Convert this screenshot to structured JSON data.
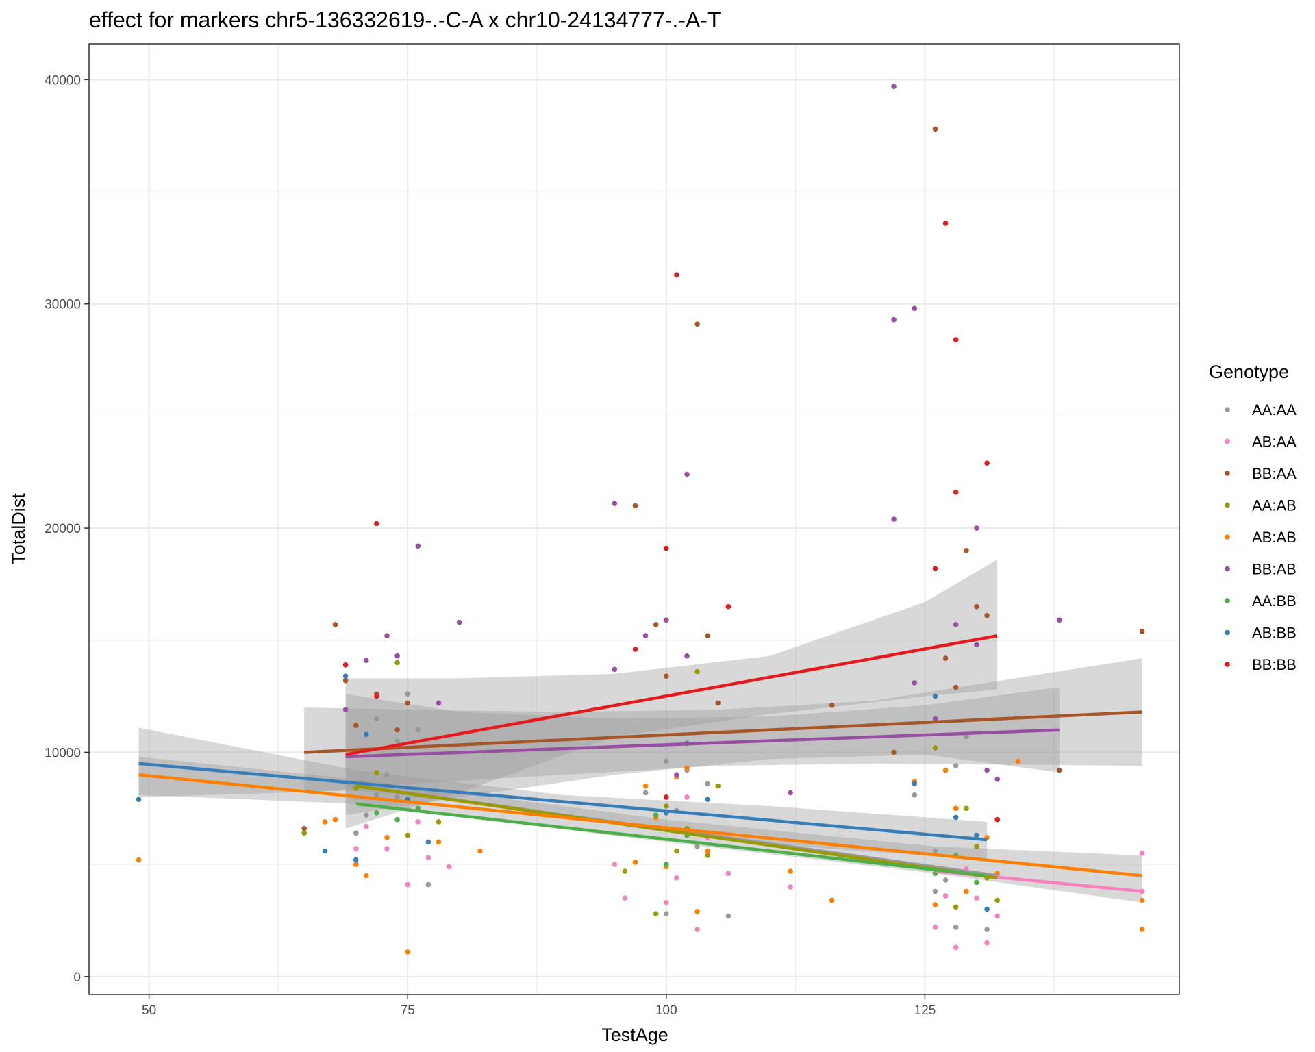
{
  "chart_data": {
    "type": "scatter",
    "title": "effect for markers chr5-136332619-.-C-A x chr10-24134777-.-A-T",
    "xlabel": "TestAge",
    "ylabel": "TotalDist",
    "xlim": [
      44.2,
      149.6
    ],
    "ylim": [
      -800,
      41600
    ],
    "x_ticks": [
      50,
      75,
      100,
      125
    ],
    "y_ticks": [
      0,
      10000,
      20000,
      30000,
      40000
    ],
    "grid": true,
    "legend": {
      "title": "Genotype",
      "placement": "right"
    },
    "series": [
      {
        "name": "AA:AA",
        "color": "#999999",
        "points": [
          [
            70,
            6400
          ],
          [
            71,
            7200
          ],
          [
            72,
            8100
          ],
          [
            73,
            9000
          ],
          [
            74,
            10500
          ],
          [
            75,
            12600
          ],
          [
            76,
            11000
          ],
          [
            77,
            4100
          ],
          [
            74,
            8000
          ],
          [
            72,
            11500
          ],
          [
            100,
            2800
          ],
          [
            101,
            7400
          ],
          [
            102,
            9200
          ],
          [
            103,
            5800
          ],
          [
            104,
            8600
          ],
          [
            106,
            2700
          ],
          [
            100,
            9600
          ],
          [
            98,
            8200
          ],
          [
            124,
            8100
          ],
          [
            126,
            5600
          ],
          [
            127,
            4300
          ],
          [
            128,
            9400
          ],
          [
            129,
            10700
          ],
          [
            130,
            6300
          ],
          [
            131,
            2100
          ],
          [
            132,
            7000
          ],
          [
            128,
            2200
          ],
          [
            126,
            3800
          ]
        ],
        "fit": {
          "x": [
            70,
            132
          ],
          "y": [
            8500,
            4500
          ]
        }
      },
      {
        "name": "AB:AA",
        "color": "#F781BF",
        "points": [
          [
            70,
            5700
          ],
          [
            71,
            6700
          ],
          [
            73,
            5700
          ],
          [
            75,
            4100
          ],
          [
            77,
            5300
          ],
          [
            79,
            4900
          ],
          [
            76,
            6900
          ],
          [
            95,
            5000
          ],
          [
            96,
            3500
          ],
          [
            100,
            3300
          ],
          [
            101,
            4400
          ],
          [
            102,
            8000
          ],
          [
            103,
            2100
          ],
          [
            104,
            6200
          ],
          [
            106,
            4600
          ],
          [
            112,
            4000
          ],
          [
            126,
            2200
          ],
          [
            127,
            3600
          ],
          [
            128,
            1300
          ],
          [
            129,
            4800
          ],
          [
            130,
            3500
          ],
          [
            131,
            1500
          ],
          [
            132,
            2700
          ],
          [
            146,
            5500
          ],
          [
            146,
            3800
          ]
        ],
        "fit": {
          "x": [
            126,
            146
          ],
          "y": [
            4700,
            3800
          ]
        }
      },
      {
        "name": "BB:AA",
        "color": "#A65628",
        "points": [
          [
            65,
            6600
          ],
          [
            68,
            15700
          ],
          [
            69,
            13200
          ],
          [
            70,
            11200
          ],
          [
            72,
            12600
          ],
          [
            74,
            11000
          ],
          [
            75,
            12200
          ],
          [
            97,
            21000
          ],
          [
            99,
            15700
          ],
          [
            100,
            13400
          ],
          [
            103,
            29100
          ],
          [
            104,
            15200
          ],
          [
            105,
            12200
          ],
          [
            116,
            12100
          ],
          [
            122,
            10000
          ],
          [
            126,
            37800
          ],
          [
            127,
            14200
          ],
          [
            128,
            12900
          ],
          [
            129,
            19000
          ],
          [
            130,
            16500
          ],
          [
            131,
            16100
          ],
          [
            138,
            9200
          ],
          [
            146,
            15400
          ]
        ],
        "fit": {
          "x": [
            65,
            146
          ],
          "y": [
            10000,
            11800
          ]
        }
      },
      {
        "name": "AA:AB",
        "color": "#999900",
        "points": [
          [
            65,
            6400
          ],
          [
            70,
            8400
          ],
          [
            72,
            9100
          ],
          [
            74,
            14000
          ],
          [
            75,
            6300
          ],
          [
            78,
            6900
          ],
          [
            96,
            4700
          ],
          [
            99,
            2800
          ],
          [
            100,
            7600
          ],
          [
            101,
            5600
          ],
          [
            102,
            6600
          ],
          [
            103,
            13600
          ],
          [
            104,
            5400
          ],
          [
            105,
            8500
          ],
          [
            126,
            10200
          ],
          [
            128,
            3100
          ],
          [
            129,
            7500
          ],
          [
            130,
            5800
          ],
          [
            131,
            4400
          ],
          [
            132,
            3400
          ]
        ],
        "fit": {
          "x": [
            70,
            132
          ],
          "y": [
            8500,
            4400
          ]
        }
      },
      {
        "name": "AB:AB",
        "color": "#FF7F00",
        "points": [
          [
            49,
            5200
          ],
          [
            67,
            6900
          ],
          [
            68,
            7000
          ],
          [
            70,
            5000
          ],
          [
            71,
            4500
          ],
          [
            73,
            6200
          ],
          [
            75,
            1100
          ],
          [
            78,
            6000
          ],
          [
            82,
            5600
          ],
          [
            97,
            5100
          ],
          [
            98,
            8500
          ],
          [
            99,
            7100
          ],
          [
            100,
            4900
          ],
          [
            101,
            8900
          ],
          [
            102,
            9300
          ],
          [
            103,
            2900
          ],
          [
            104,
            5600
          ],
          [
            112,
            4700
          ],
          [
            116,
            3400
          ],
          [
            124,
            8700
          ],
          [
            126,
            3200
          ],
          [
            127,
            9200
          ],
          [
            128,
            7500
          ],
          [
            129,
            3800
          ],
          [
            131,
            6200
          ],
          [
            132,
            4600
          ],
          [
            134,
            9600
          ],
          [
            146,
            3400
          ],
          [
            146,
            2100
          ]
        ],
        "fit": {
          "x": [
            49,
            146
          ],
          "y": [
            9000,
            4500
          ]
        }
      },
      {
        "name": "BB:AB",
        "color": "#984EA3",
        "points": [
          [
            69,
            11900
          ],
          [
            71,
            14100
          ],
          [
            73,
            15200
          ],
          [
            74,
            14300
          ],
          [
            76,
            19200
          ],
          [
            78,
            12200
          ],
          [
            80,
            15800
          ],
          [
            95,
            21100
          ],
          [
            95,
            13700
          ],
          [
            98,
            15200
          ],
          [
            100,
            15900
          ],
          [
            101,
            9000
          ],
          [
            102,
            22400
          ],
          [
            102,
            14300
          ],
          [
            112,
            8200
          ],
          [
            122,
            39700
          ],
          [
            122,
            29300
          ],
          [
            122,
            20400
          ],
          [
            124,
            29800
          ],
          [
            124,
            13100
          ],
          [
            126,
            11500
          ],
          [
            128,
            15700
          ],
          [
            130,
            20000
          ],
          [
            130,
            14800
          ],
          [
            131,
            9200
          ],
          [
            132,
            8800
          ],
          [
            138,
            15900
          ]
        ],
        "fit": {
          "x": [
            69,
            138
          ],
          "y": [
            9800,
            11000
          ]
        }
      },
      {
        "name": "AA:BB",
        "color": "#4DAF4A",
        "points": [
          [
            72,
            7300
          ],
          [
            74,
            7000
          ],
          [
            76,
            7500
          ],
          [
            99,
            7200
          ],
          [
            100,
            5000
          ],
          [
            102,
            6300
          ],
          [
            126,
            4600
          ],
          [
            128,
            5400
          ],
          [
            130,
            4200
          ]
        ],
        "fit": {
          "x": [
            70,
            131
          ],
          "y": [
            7700,
            4500
          ]
        }
      },
      {
        "name": "AB:BB",
        "color": "#377EB8",
        "points": [
          [
            49,
            7900
          ],
          [
            67,
            5600
          ],
          [
            69,
            13400
          ],
          [
            70,
            5200
          ],
          [
            71,
            10800
          ],
          [
            75,
            7900
          ],
          [
            77,
            6000
          ],
          [
            100,
            7300
          ],
          [
            102,
            10400
          ],
          [
            104,
            7900
          ],
          [
            124,
            8600
          ],
          [
            126,
            12500
          ],
          [
            128,
            7100
          ],
          [
            130,
            6300
          ],
          [
            131,
            3000
          ]
        ],
        "fit": {
          "x": [
            49,
            131
          ],
          "y": [
            9500,
            6100
          ]
        }
      },
      {
        "name": "BB:BB",
        "color": "#E41A1C",
        "points": [
          [
            69,
            13900
          ],
          [
            72,
            20200
          ],
          [
            72,
            12500
          ],
          [
            97,
            14600
          ],
          [
            100,
            19100
          ],
          [
            100,
            8000
          ],
          [
            101,
            31300
          ],
          [
            106,
            16500
          ],
          [
            126,
            18200
          ],
          [
            127,
            33600
          ],
          [
            128,
            28400
          ],
          [
            128,
            21600
          ],
          [
            131,
            22900
          ],
          [
            132,
            7000
          ]
        ],
        "fit": {
          "x": [
            69,
            132
          ],
          "y": [
            9900,
            15200
          ]
        }
      }
    ],
    "ribbons": [
      {
        "x": [
          65,
          75,
          90,
          105,
          120,
          146
        ],
        "upper": [
          12000,
          11900,
          11800,
          11900,
          12300,
          14200
        ],
        "lower": [
          8200,
          8600,
          9000,
          9400,
          9500,
          9400
        ]
      },
      {
        "x": [
          69,
          80,
          95,
          110,
          125,
          138
        ],
        "upper": [
          12600,
          11800,
          11500,
          11600,
          12100,
          12900
        ],
        "lower": [
          7200,
          8000,
          9000,
          9700,
          9900,
          9100
        ]
      },
      {
        "x": [
          69,
          80,
          95,
          110,
          125,
          132
        ],
        "upper": [
          13300,
          13300,
          13500,
          14300,
          16700,
          18600
        ],
        "lower": [
          6600,
          8200,
          10700,
          11700,
          12500,
          12800
        ]
      },
      {
        "x": [
          49,
          70,
          90,
          110,
          131
        ],
        "upper": [
          11100,
          9200,
          8100,
          7600,
          6900
        ],
        "lower": [
          8000,
          8300,
          7300,
          5900,
          5200
        ]
      },
      {
        "x": [
          49,
          70,
          100,
          126,
          146
        ],
        "upper": [
          9800,
          8800,
          7000,
          5800,
          5400
        ],
        "lower": [
          8100,
          7700,
          6000,
          4600,
          3300
        ]
      }
    ]
  }
}
